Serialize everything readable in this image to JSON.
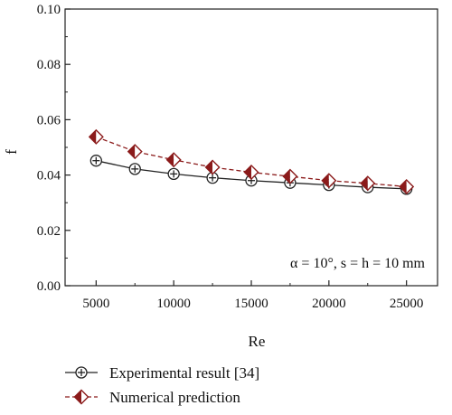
{
  "chart_data": {
    "type": "line",
    "xlabel": "Re",
    "ylabel": "f",
    "xlim": [
      3000,
      27000
    ],
    "ylim": [
      0.0,
      0.1
    ],
    "x_ticks": [
      5000,
      10000,
      15000,
      20000,
      25000
    ],
    "x_tick_labels": [
      "5000",
      "10000",
      "15000",
      "20000",
      "25000"
    ],
    "y_ticks": [
      0.0,
      0.02,
      0.04,
      0.06,
      0.08,
      0.1
    ],
    "y_tick_labels": [
      "0.00",
      "0.02",
      "0.04",
      "0.06",
      "0.08",
      "0.10"
    ],
    "x": [
      5000,
      7500,
      10000,
      12500,
      15000,
      17500,
      20000,
      22500,
      25000
    ],
    "series": [
      {
        "name": "Experimental result [34]",
        "values": [
          0.0452,
          0.0422,
          0.0404,
          0.039,
          0.038,
          0.0372,
          0.0364,
          0.0356,
          0.035
        ],
        "color": "#222222",
        "line_style": "solid",
        "marker": "circle-plus"
      },
      {
        "name": "Numerical prediction",
        "values": [
          0.0538,
          0.0485,
          0.0455,
          0.0428,
          0.041,
          0.0395,
          0.038,
          0.037,
          0.0358
        ],
        "color": "#8b1a1a",
        "line_style": "dashed",
        "marker": "diamond-split"
      }
    ],
    "annotation": "α = 10°, s = h = 10 mm",
    "legend_position": "bottom",
    "grid": false
  }
}
